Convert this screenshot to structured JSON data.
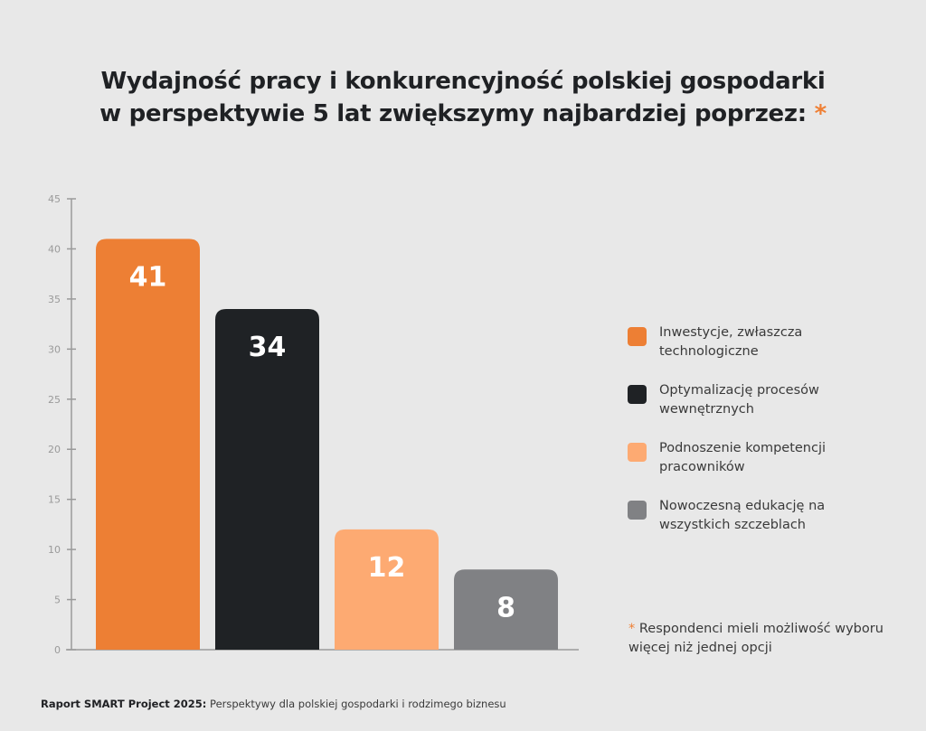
{
  "title": {
    "line1": "Wydajność pracy i konkurencyjność polskiej gospodarki",
    "line2": "w perspektywie 5 lat zwiększymy najbardziej poprzez:",
    "asterisk": "*"
  },
  "chart_data": {
    "type": "bar",
    "title": "Wydajność pracy i konkurencyjność polskiej gospodarki w perspektywie 5 lat zwiększymy najbardziej poprzez:",
    "xlabel": "",
    "ylabel": "",
    "ylim": [
      0,
      45
    ],
    "yticks": [
      "0",
      "5",
      "10",
      "15",
      "20",
      "25",
      "30",
      "35",
      "40",
      "45"
    ],
    "grid": false,
    "legend_position": "right",
    "categories": [
      "Inwestycje, zwłaszcza technologiczne",
      "Optymalizację procesów wewnętrznych",
      "Podnoszenie kompetencji pracowników",
      "Nowoczesną edukację na wszystkich szczeblach"
    ],
    "values": [
      41,
      34,
      12,
      8
    ],
    "data_labels": [
      "41",
      "34",
      "12",
      "8"
    ],
    "colors": [
      "#ed7f34",
      "#1f2225",
      "#fdaa72",
      "#808184"
    ]
  },
  "legend": {
    "items": [
      {
        "label": "Inwestycje, zwłaszcza technologiczne",
        "color": "#ed7f34"
      },
      {
        "label": "Optymalizację procesów wewnętrznych",
        "color": "#1f2225"
      },
      {
        "label": "Podnoszenie kompetencji pracowników",
        "color": "#fdaa72"
      },
      {
        "label": "Nowoczesną edukację na wszystkich szczeblach",
        "color": "#808184"
      }
    ]
  },
  "note": {
    "asterisk": "*",
    "text": " Respondenci mieli możliwość wyboru więcej niż jednej opcji"
  },
  "footer": {
    "bold": "Raport SMART Project 2025:",
    "text": " Perspektywy dla polskiej gospodarki i rodzimego biznesu"
  },
  "colors": {
    "background": "#e8e8e8",
    "accent": "#ef7f34",
    "axis": "#9a9a9a"
  }
}
